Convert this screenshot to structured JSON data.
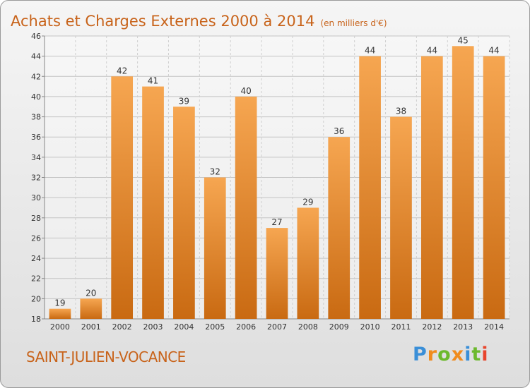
{
  "title": "Achats et Charges Externes 2000 à 2014",
  "unit": "(en milliers d'€)",
  "town": "SAINT-JULIEN-VOCANCE",
  "logo": {
    "letters": [
      "P",
      "r",
      "o",
      "x",
      "i",
      "t",
      "i"
    ],
    "colors": [
      "#3a8fd8",
      "#f08c1e",
      "#6cb92d",
      "#f08c1e",
      "#3a8fd8",
      "#6cb92d",
      "#e8452c"
    ]
  },
  "chart_data": {
    "type": "bar",
    "categories": [
      "2000",
      "2001",
      "2002",
      "2003",
      "2004",
      "2005",
      "2006",
      "2007",
      "2008",
      "2009",
      "2010",
      "2011",
      "2012",
      "2013",
      "2014"
    ],
    "values": [
      19,
      20,
      42,
      41,
      39,
      32,
      40,
      27,
      29,
      36,
      44,
      38,
      44,
      45,
      44
    ],
    "ylim": [
      18,
      46
    ],
    "yticks": [
      18,
      20,
      22,
      24,
      26,
      28,
      30,
      32,
      34,
      36,
      38,
      40,
      42,
      44,
      46
    ],
    "grid": true,
    "bar_color_top": "#f6a651",
    "bar_color_bottom": "#c96a12"
  }
}
